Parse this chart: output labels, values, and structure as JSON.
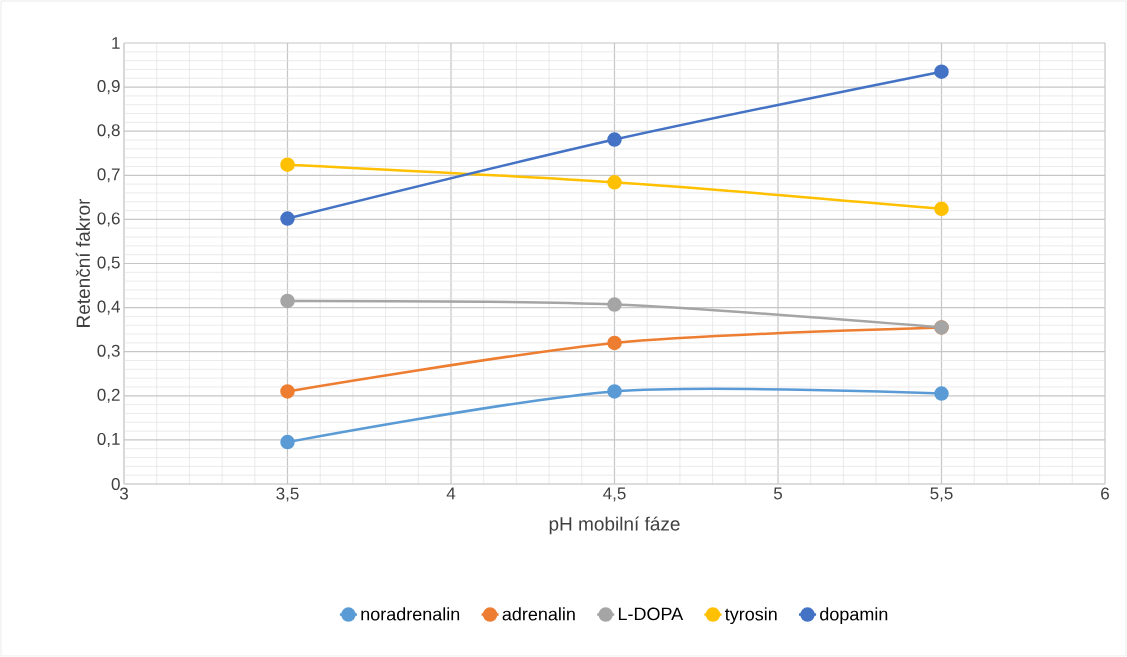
{
  "chart_data": {
    "type": "line",
    "xlabel": "pH mobilní fáze",
    "ylabel": "Retenční fakror",
    "x": [
      3.5,
      4.5,
      5.5
    ],
    "series": [
      {
        "name": "noradrenalin",
        "color": "#5b9bd5",
        "values": [
          0.095,
          0.21,
          0.205
        ]
      },
      {
        "name": "adrenalin",
        "color": "#ed7d31",
        "values": [
          0.21,
          0.32,
          0.355
        ]
      },
      {
        "name": "L-DOPA",
        "color": "#a5a5a5",
        "values": [
          0.415,
          0.407,
          0.355
        ]
      },
      {
        "name": "tyrosin",
        "color": "#ffc000",
        "values": [
          0.724,
          0.684,
          0.624
        ]
      },
      {
        "name": "dopamin",
        "color": "#4472c4",
        "values": [
          0.602,
          0.781,
          0.935
        ]
      }
    ],
    "xlim": [
      3,
      6
    ],
    "ylim": [
      0,
      1
    ],
    "xticks": [
      3,
      {
        "value": 3.5,
        "label": "3,5"
      },
      4,
      {
        "value": 4.5,
        "label": "4,5"
      },
      5,
      {
        "value": 5.5,
        "label": "5,5"
      },
      6
    ],
    "yticks": [
      0,
      {
        "value": 0.1,
        "label": "0,1"
      },
      {
        "value": 0.2,
        "label": "0,2"
      },
      {
        "value": 0.3,
        "label": "0,3"
      },
      {
        "value": 0.4,
        "label": "0,4"
      },
      {
        "value": 0.5,
        "label": "0,5"
      },
      {
        "value": 0.6,
        "label": "0,6"
      },
      {
        "value": 0.7,
        "label": "0,7"
      },
      {
        "value": 0.8,
        "label": "0,8"
      },
      {
        "value": 0.9,
        "label": "0,9"
      },
      1
    ],
    "grid": true,
    "legend": "bottom",
    "marker": "circle",
    "line_style": "solid"
  }
}
